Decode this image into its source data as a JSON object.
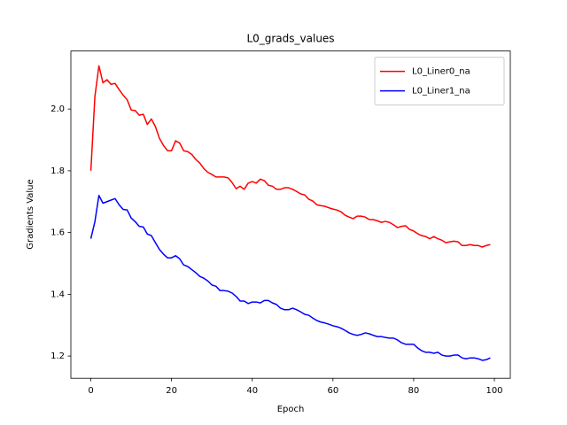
{
  "chart_data": {
    "type": "line",
    "title": "L0_grads_values",
    "xlabel": "Epoch",
    "ylabel": "Gradients Value",
    "x": [
      0,
      1,
      2,
      3,
      4,
      5,
      6,
      7,
      8,
      9,
      10,
      11,
      12,
      13,
      14,
      15,
      16,
      17,
      18,
      19,
      20,
      21,
      22,
      23,
      24,
      25,
      26,
      27,
      28,
      29,
      30,
      31,
      32,
      33,
      34,
      35,
      36,
      37,
      38,
      39,
      40,
      41,
      42,
      43,
      44,
      45,
      46,
      47,
      48,
      49,
      50,
      51,
      52,
      53,
      54,
      55,
      56,
      57,
      58,
      59,
      60,
      61,
      62,
      63,
      64,
      65,
      66,
      67,
      68,
      69,
      70,
      71,
      72,
      73,
      74,
      75,
      76,
      77,
      78,
      79,
      80,
      81,
      82,
      83,
      84,
      85,
      86,
      87,
      88,
      89,
      90,
      91,
      92,
      93,
      94,
      95,
      96,
      97,
      98,
      99
    ],
    "series": [
      {
        "name": "L0_Liner0_na",
        "color": "#ff0000",
        "values": [
          1.8,
          2.04,
          2.14,
          2.085,
          2.095,
          2.08,
          2.083,
          2.063,
          2.045,
          2.03,
          1.997,
          1.995,
          1.98,
          1.983,
          1.95,
          1.968,
          1.943,
          1.905,
          1.882,
          1.865,
          1.865,
          1.897,
          1.89,
          1.865,
          1.862,
          1.853,
          1.837,
          1.825,
          1.807,
          1.795,
          1.788,
          1.78,
          1.78,
          1.78,
          1.777,
          1.762,
          1.742,
          1.75,
          1.74,
          1.76,
          1.765,
          1.76,
          1.773,
          1.768,
          1.753,
          1.75,
          1.74,
          1.74,
          1.745,
          1.745,
          1.74,
          1.733,
          1.725,
          1.722,
          1.708,
          1.702,
          1.69,
          1.687,
          1.685,
          1.68,
          1.676,
          1.673,
          1.667,
          1.656,
          1.65,
          1.645,
          1.653,
          1.653,
          1.65,
          1.642,
          1.642,
          1.638,
          1.633,
          1.636,
          1.633,
          1.625,
          1.616,
          1.62,
          1.622,
          1.61,
          1.605,
          1.596,
          1.59,
          1.587,
          1.58,
          1.587,
          1.58,
          1.575,
          1.567,
          1.57,
          1.572,
          1.57,
          1.558,
          1.558,
          1.561,
          1.558,
          1.558,
          1.553,
          1.558,
          1.561
        ]
      },
      {
        "name": "L0_Liner1_na",
        "color": "#0000ff",
        "values": [
          1.58,
          1.635,
          1.72,
          1.695,
          1.7,
          1.705,
          1.71,
          1.69,
          1.675,
          1.673,
          1.647,
          1.635,
          1.62,
          1.618,
          1.595,
          1.59,
          1.567,
          1.545,
          1.53,
          1.518,
          1.518,
          1.525,
          1.515,
          1.495,
          1.49,
          1.48,
          1.47,
          1.458,
          1.452,
          1.443,
          1.43,
          1.426,
          1.412,
          1.412,
          1.41,
          1.404,
          1.393,
          1.378,
          1.378,
          1.37,
          1.375,
          1.375,
          1.372,
          1.38,
          1.38,
          1.372,
          1.367,
          1.355,
          1.35,
          1.35,
          1.355,
          1.35,
          1.343,
          1.335,
          1.332,
          1.323,
          1.315,
          1.31,
          1.307,
          1.303,
          1.298,
          1.295,
          1.29,
          1.283,
          1.275,
          1.27,
          1.267,
          1.27,
          1.275,
          1.272,
          1.267,
          1.263,
          1.263,
          1.26,
          1.258,
          1.258,
          1.252,
          1.243,
          1.238,
          1.238,
          1.238,
          1.226,
          1.217,
          1.212,
          1.212,
          1.209,
          1.212,
          1.203,
          1.2,
          1.2,
          1.203,
          1.203,
          1.194,
          1.191,
          1.194,
          1.194,
          1.191,
          1.186,
          1.188,
          1.194
        ]
      }
    ],
    "xlim": [
      -4.95,
      103.95
    ],
    "xticks": [
      0,
      20,
      40,
      60,
      80,
      100
    ],
    "ylim": [
      1.128,
      2.188
    ],
    "yticks": [
      1.2,
      1.4,
      1.6,
      1.8,
      {
        "value": 2.0,
        "label": "2.0"
      }
    ],
    "legend": "upper right"
  }
}
